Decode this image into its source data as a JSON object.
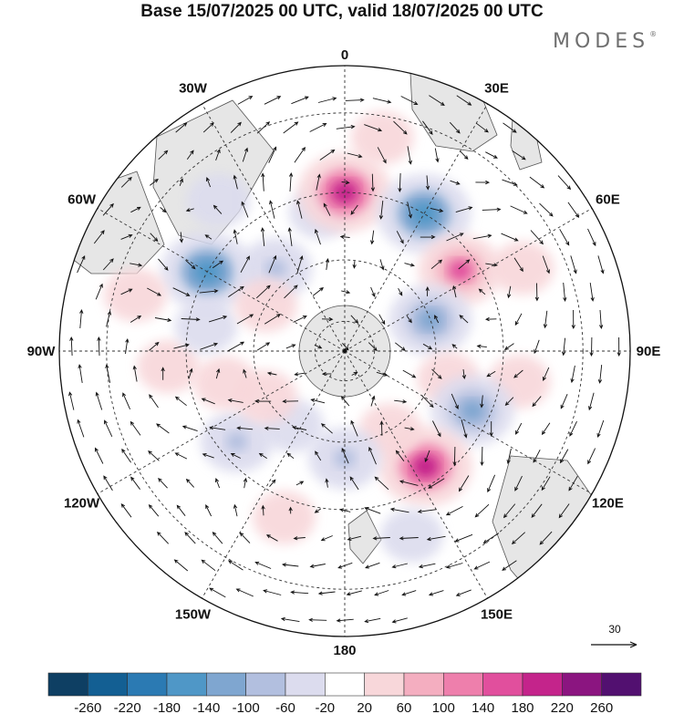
{
  "title": "Base 15/07/2025 00 UTC, valid 18/07/2025 00 UTC",
  "brand": {
    "name": "MODES",
    "mark": "®"
  },
  "meridian_labels": [
    {
      "text": "0",
      "lon": 0
    },
    {
      "text": "30E",
      "lon": 30
    },
    {
      "text": "60E",
      "lon": 60
    },
    {
      "text": "90E",
      "lon": 90
    },
    {
      "text": "120E",
      "lon": 120
    },
    {
      "text": "150E",
      "lon": 150
    },
    {
      "text": "180",
      "lon": 180
    },
    {
      "text": "150W",
      "lon": -150
    },
    {
      "text": "120W",
      "lon": -120
    },
    {
      "text": "90W",
      "lon": -90
    },
    {
      "text": "60W",
      "lon": -60
    },
    {
      "text": "30W",
      "lon": -30
    }
  ],
  "latitude_circles": [
    -80,
    -60,
    -40,
    -20
  ],
  "projection": "south-polar-stereographic",
  "reference_vector": {
    "value": "30"
  },
  "colorbar": {
    "ticks": [
      "-260",
      "-220",
      "-180",
      "-140",
      "-100",
      "-60",
      "-20",
      "20",
      "60",
      "100",
      "140",
      "180",
      "220",
      "260"
    ],
    "colors": [
      "#0e3f63",
      "#135f93",
      "#2b7ab3",
      "#4f97c7",
      "#7fa6d0",
      "#b2bfdf",
      "#dcdcee",
      "#ffffff",
      "#f8d7da",
      "#f4aec0",
      "#ee7fac",
      "#e14f9d",
      "#c4248b",
      "#8b1580",
      "#521070"
    ]
  },
  "colors": {
    "land": "#e6e6e6",
    "coast": "#555555",
    "grid": "#333333",
    "arrow": "#111111"
  },
  "anomaly_cells": [
    {
      "lon": -60,
      "lat": -40,
      "value": -180
    },
    {
      "lon": -40,
      "lat": -30,
      "value": -60
    },
    {
      "lon": -40,
      "lat": -55,
      "value": -100
    },
    {
      "lon": -10,
      "lat": -45,
      "value": -60
    },
    {
      "lon": 0,
      "lat": -40,
      "value": 180
    },
    {
      "lon": 10,
      "lat": -25,
      "value": 60
    },
    {
      "lon": 30,
      "lat": -40,
      "value": -180
    },
    {
      "lon": 55,
      "lat": -45,
      "value": 140
    },
    {
      "lon": 65,
      "lat": -30,
      "value": 60
    },
    {
      "lon": 70,
      "lat": -60,
      "value": -140
    },
    {
      "lon": 100,
      "lat": -35,
      "value": 60
    },
    {
      "lon": 105,
      "lat": -55,
      "value": 60
    },
    {
      "lon": 115,
      "lat": -45,
      "value": -140
    },
    {
      "lon": 145,
      "lat": -45,
      "value": 180
    },
    {
      "lon": 150,
      "lat": -60,
      "value": 60
    },
    {
      "lon": 160,
      "lat": -30,
      "value": -60
    },
    {
      "lon": 180,
      "lat": -55,
      "value": -100
    },
    {
      "lon": -160,
      "lat": -35,
      "value": 60
    },
    {
      "lon": -145,
      "lat": -60,
      "value": -60
    },
    {
      "lon": -130,
      "lat": -45,
      "value": -100
    },
    {
      "lon": -120,
      "lat": -60,
      "value": 60
    },
    {
      "lon": -105,
      "lat": -50,
      "value": 60
    },
    {
      "lon": -95,
      "lat": -35,
      "value": 60
    },
    {
      "lon": -80,
      "lat": -45,
      "value": -60
    },
    {
      "lon": -75,
      "lat": -25,
      "value": 60
    },
    {
      "lon": -60,
      "lat": -60,
      "value": 60
    }
  ]
}
